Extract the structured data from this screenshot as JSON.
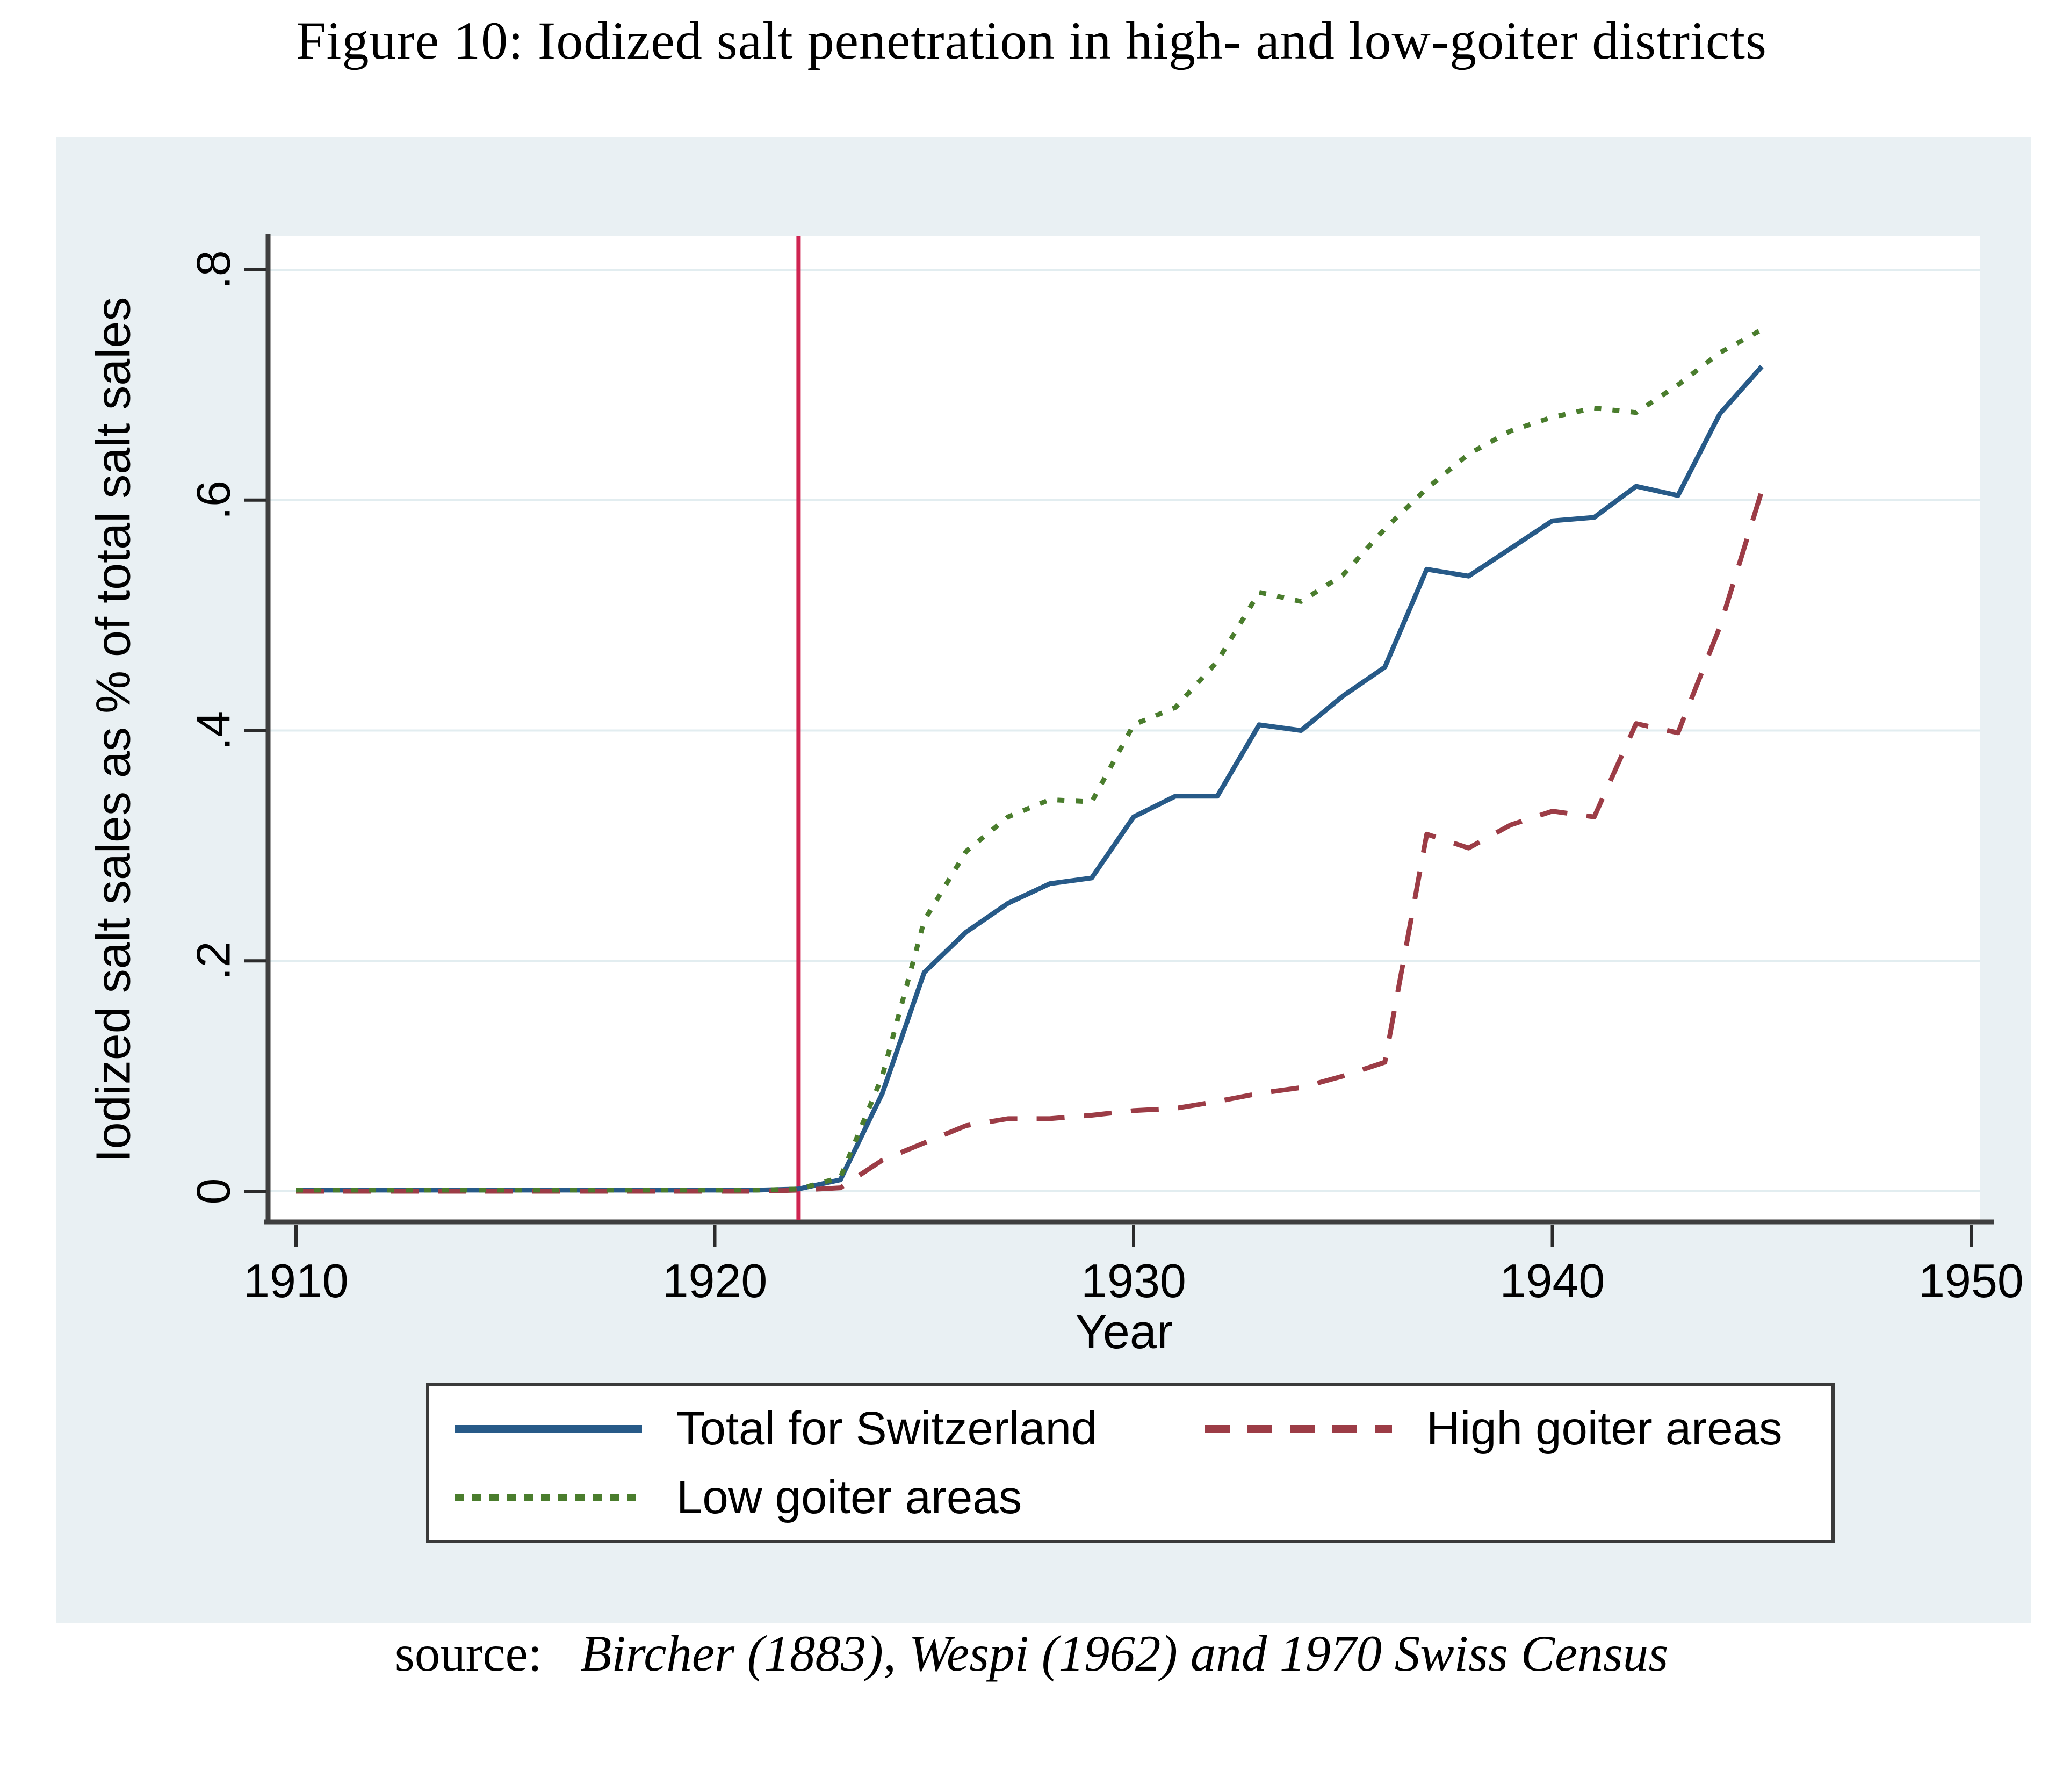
{
  "title": "Figure 10: Iodized salt penetration in high- and low-goiter districts",
  "source": {
    "prefix": "source:",
    "text": "Bircher (1883), Wespi (1962) and 1970 Swiss Census"
  },
  "chart_data": {
    "type": "line",
    "title": "Figure 10: Iodized salt penetration in high- and low-goiter districts",
    "xlabel": "Year",
    "ylabel": "Iodized salt sales as % of total salt sales",
    "xlim": [
      1909,
      1950.5
    ],
    "ylim": [
      0,
      0.82
    ],
    "x_ticks": [
      1910,
      1920,
      1930,
      1940,
      1950
    ],
    "y_ticks": [
      0,
      0.2,
      0.4,
      0.6,
      0.8
    ],
    "y_tick_labels": [
      "0",
      ".2",
      ".4",
      ".6",
      ".8"
    ],
    "grid": "horizontal",
    "grid_color": "#e2edf0",
    "background": "#e9f0f3",
    "plot_background": "#ffffff",
    "axis_color": "#3f3f3f",
    "legend_position": "bottom",
    "reference_line": {
      "x": 1922,
      "color": "#cf2451"
    },
    "x": [
      1910,
      1911,
      1912,
      1913,
      1914,
      1915,
      1916,
      1917,
      1918,
      1919,
      1920,
      1921,
      1922,
      1923,
      1924,
      1925,
      1926,
      1927,
      1928,
      1929,
      1930,
      1931,
      1932,
      1933,
      1934,
      1935,
      1936,
      1937,
      1938,
      1939,
      1940,
      1941,
      1942,
      1943,
      1944,
      1945
    ],
    "series": [
      {
        "name": "Total for Switzerland",
        "style": "solid",
        "color": "#275a88",
        "values": [
          0.001,
          0.001,
          0.001,
          0.001,
          0.001,
          0.001,
          0.001,
          0.001,
          0.001,
          0.001,
          0.001,
          0.001,
          0.002,
          0.01,
          0.085,
          0.19,
          0.225,
          0.25,
          0.267,
          0.272,
          0.325,
          0.343,
          0.343,
          0.405,
          0.4,
          0.43,
          0.455,
          0.54,
          0.534,
          0.558,
          0.582,
          0.585,
          0.612,
          0.604,
          0.675,
          0.716
        ]
      },
      {
        "name": "High goiter areas",
        "style": "dashed",
        "color": "#9c3c46",
        "values": [
          0,
          0,
          0,
          0,
          0,
          0,
          0,
          0,
          0,
          0,
          0,
          0,
          0.001,
          0.003,
          0.027,
          0.042,
          0.057,
          0.063,
          0.063,
          0.066,
          0.07,
          0.072,
          0.078,
          0.085,
          0.09,
          0.1,
          0.112,
          0.31,
          0.298,
          0.318,
          0.33,
          0.325,
          0.406,
          0.398,
          0.49,
          0.608
        ]
      },
      {
        "name": "Low goiter areas",
        "style": "dotted",
        "color": "#4a7d2d",
        "values": [
          0.001,
          0.001,
          0.001,
          0.001,
          0.001,
          0.001,
          0.001,
          0.001,
          0.001,
          0.001,
          0.001,
          0.001,
          0.002,
          0.012,
          0.1,
          0.235,
          0.295,
          0.325,
          0.34,
          0.338,
          0.405,
          0.42,
          0.46,
          0.52,
          0.512,
          0.535,
          0.575,
          0.61,
          0.64,
          0.66,
          0.672,
          0.68,
          0.676,
          0.7,
          0.728,
          0.748
        ]
      }
    ]
  }
}
